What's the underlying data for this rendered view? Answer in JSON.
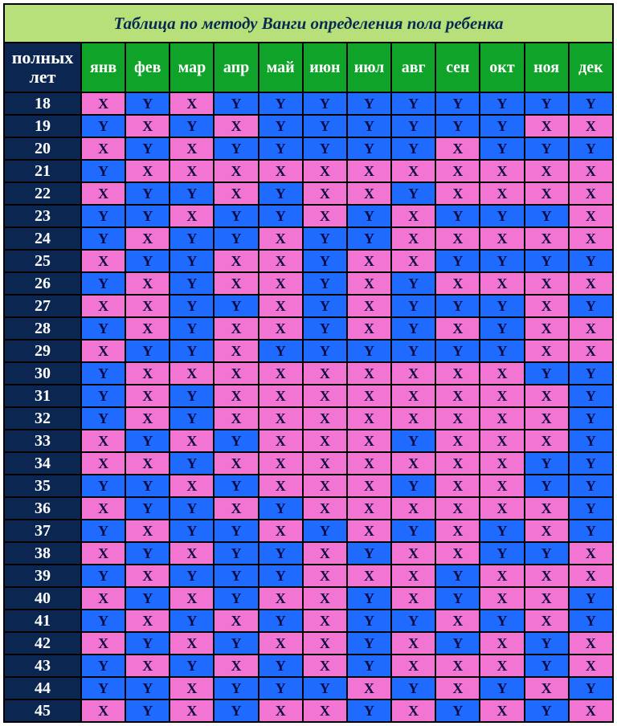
{
  "meta": {
    "title": "Таблица по методу Ванги определения пола ребенка",
    "corner_line1": "полных",
    "corner_line2": "лет",
    "title_fontsize": 21,
    "head_fontsize": 20,
    "cell_fontsize": 18
  },
  "colors": {
    "title_bg": "#b7e07a",
    "title_text": "#072a53",
    "header_bg": "#0fa32a",
    "navy_bg": "#0b2650",
    "head_text": "#ffffff",
    "cell_text": "#0b0b44",
    "X_bg": "#f274d3",
    "Y_bg": "#1f6bff",
    "border": "#000000"
  },
  "columns": [
    "янв",
    "фев",
    "мар",
    "апр",
    "май",
    "июн",
    "июл",
    "авг",
    "сен",
    "окт",
    "ноя",
    "дек"
  ],
  "ages": [
    18,
    19,
    20,
    21,
    22,
    23,
    24,
    25,
    26,
    27,
    28,
    29,
    30,
    31,
    32,
    33,
    34,
    35,
    36,
    37,
    38,
    39,
    40,
    41,
    42,
    43,
    44,
    45
  ],
  "grid": [
    [
      "X",
      "Y",
      "X",
      "Y",
      "Y",
      "Y",
      "Y",
      "Y",
      "Y",
      "Y",
      "Y",
      "Y"
    ],
    [
      "Y",
      "X",
      "Y",
      "X",
      "Y",
      "Y",
      "Y",
      "Y",
      "Y",
      "Y",
      "X",
      "X"
    ],
    [
      "X",
      "Y",
      "X",
      "Y",
      "Y",
      "Y",
      "Y",
      "Y",
      "X",
      "Y",
      "Y",
      "Y"
    ],
    [
      "Y",
      "X",
      "X",
      "X",
      "X",
      "X",
      "X",
      "X",
      "X",
      "X",
      "X",
      "X"
    ],
    [
      "X",
      "Y",
      "Y",
      "X",
      "Y",
      "X",
      "X",
      "Y",
      "X",
      "X",
      "X",
      "X"
    ],
    [
      "Y",
      "Y",
      "X",
      "Y",
      "Y",
      "X",
      "Y",
      "X",
      "Y",
      "Y",
      "Y",
      "X"
    ],
    [
      "Y",
      "X",
      "Y",
      "Y",
      "X",
      "Y",
      "Y",
      "X",
      "X",
      "X",
      "X",
      "X"
    ],
    [
      "X",
      "Y",
      "Y",
      "X",
      "X",
      "Y",
      "X",
      "X",
      "Y",
      "Y",
      "Y",
      "Y"
    ],
    [
      "Y",
      "X",
      "Y",
      "X",
      "X",
      "Y",
      "X",
      "Y",
      "X",
      "X",
      "X",
      "X"
    ],
    [
      "X",
      "X",
      "Y",
      "Y",
      "X",
      "Y",
      "X",
      "Y",
      "Y",
      "Y",
      "X",
      "Y"
    ],
    [
      "Y",
      "X",
      "Y",
      "X",
      "X",
      "Y",
      "X",
      "Y",
      "X",
      "Y",
      "X",
      "X"
    ],
    [
      "X",
      "Y",
      "Y",
      "X",
      "Y",
      "Y",
      "Y",
      "Y",
      "Y",
      "Y",
      "X",
      "X"
    ],
    [
      "Y",
      "X",
      "X",
      "X",
      "X",
      "X",
      "X",
      "X",
      "X",
      "X",
      "Y",
      "Y"
    ],
    [
      "Y",
      "X",
      "Y",
      "X",
      "X",
      "X",
      "X",
      "X",
      "X",
      "X",
      "X",
      "Y"
    ],
    [
      "Y",
      "X",
      "Y",
      "X",
      "X",
      "X",
      "X",
      "X",
      "X",
      "X",
      "X",
      "Y"
    ],
    [
      "X",
      "Y",
      "X",
      "Y",
      "X",
      "X",
      "X",
      "Y",
      "X",
      "X",
      "X",
      "Y"
    ],
    [
      "X",
      "X",
      "Y",
      "X",
      "X",
      "X",
      "X",
      "X",
      "X",
      "X",
      "Y",
      "Y"
    ],
    [
      "Y",
      "Y",
      "X",
      "Y",
      "X",
      "X",
      "X",
      "Y",
      "X",
      "X",
      "Y",
      "Y"
    ],
    [
      "X",
      "Y",
      "Y",
      "X",
      "Y",
      "X",
      "X",
      "X",
      "X",
      "X",
      "X",
      "Y"
    ],
    [
      "Y",
      "X",
      "Y",
      "Y",
      "X",
      "Y",
      "X",
      "Y",
      "X",
      "Y",
      "X",
      "Y"
    ],
    [
      "X",
      "Y",
      "X",
      "Y",
      "Y",
      "X",
      "Y",
      "X",
      "X",
      "Y",
      "Y",
      "X"
    ],
    [
      "Y",
      "X",
      "Y",
      "Y",
      "Y",
      "X",
      "X",
      "X",
      "Y",
      "X",
      "X",
      "X"
    ],
    [
      "X",
      "Y",
      "X",
      "Y",
      "X",
      "X",
      "Y",
      "X",
      "Y",
      "X",
      "X",
      "Y"
    ],
    [
      "Y",
      "X",
      "Y",
      "X",
      "Y",
      "X",
      "Y",
      "Y",
      "X",
      "Y",
      "X",
      "Y"
    ],
    [
      "X",
      "Y",
      "X",
      "Y",
      "X",
      "X",
      "Y",
      "X",
      "Y",
      "X",
      "Y",
      "X"
    ],
    [
      "Y",
      "X",
      "Y",
      "X",
      "Y",
      "X",
      "Y",
      "X",
      "X",
      "X",
      "Y",
      "X"
    ],
    [
      "Y",
      "Y",
      "X",
      "Y",
      "Y",
      "Y",
      "X",
      "Y",
      "X",
      "Y",
      "X",
      "Y"
    ],
    [
      "X",
      "Y",
      "X",
      "Y",
      "X",
      "X",
      "Y",
      "X",
      "Y",
      "X",
      "Y",
      "X"
    ]
  ]
}
